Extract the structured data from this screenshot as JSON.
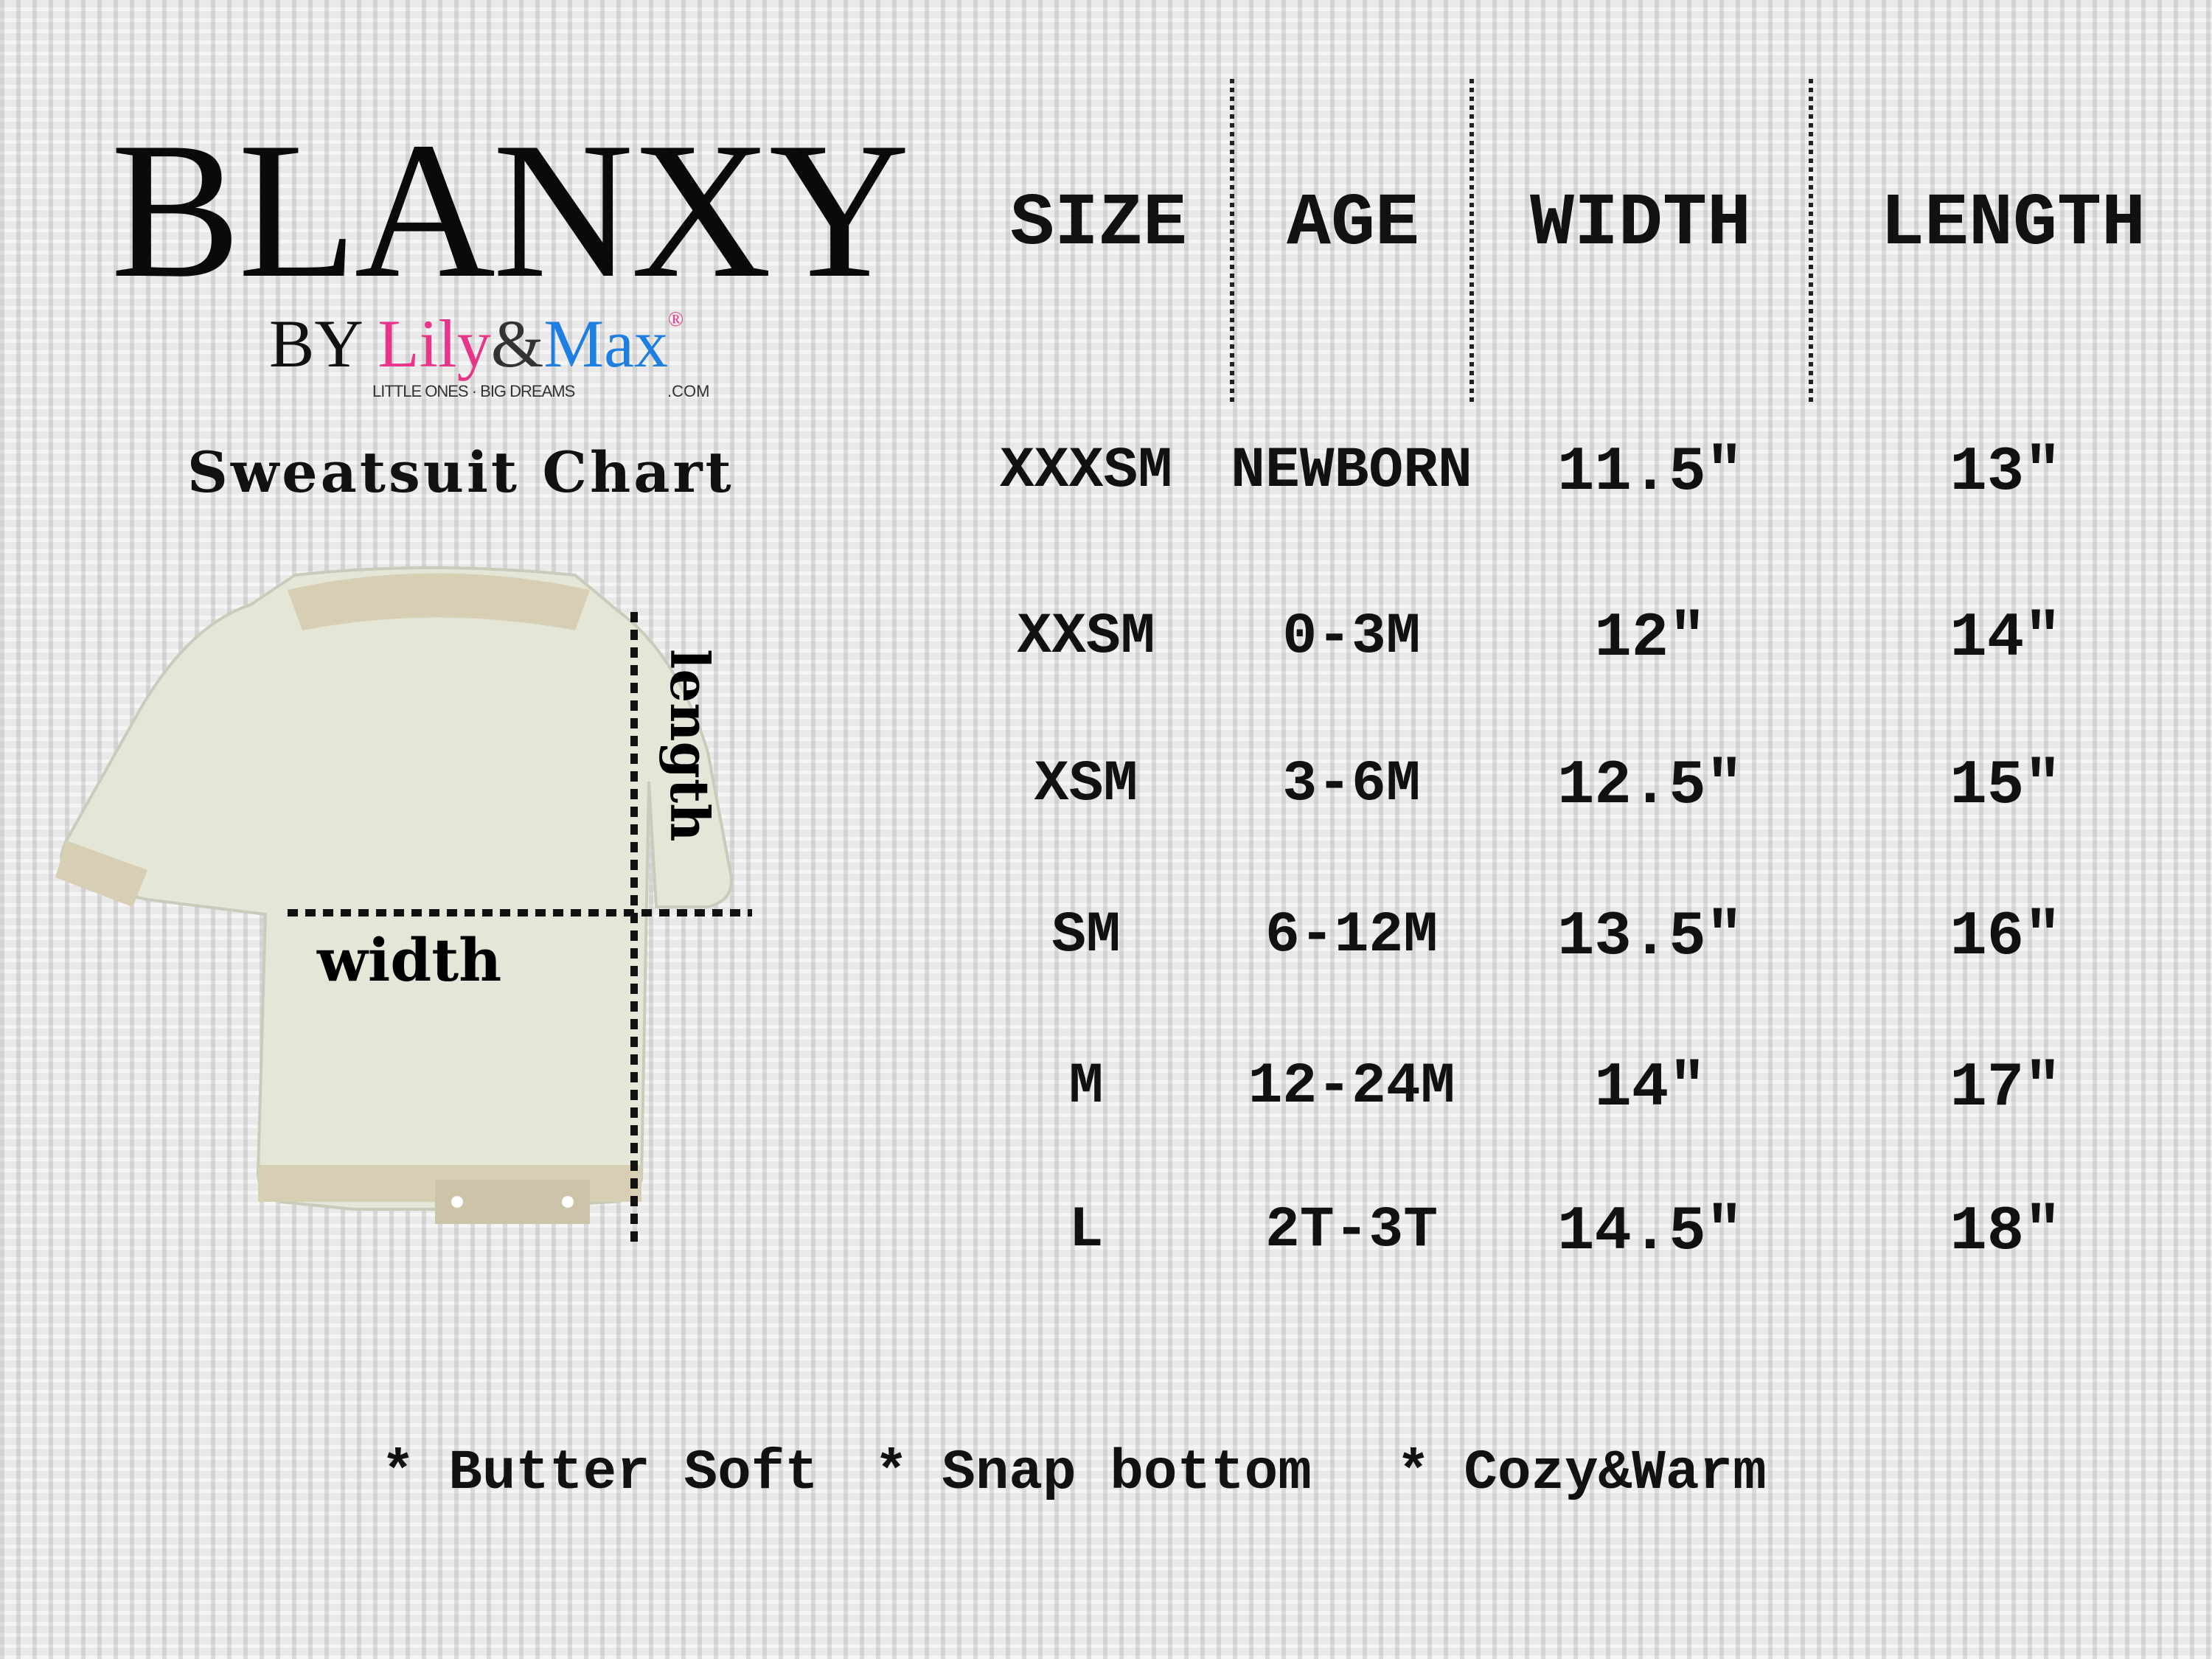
{
  "brand": {
    "name": "BLANXY",
    "by": "BY",
    "lily": "Lily",
    "amp": "&",
    "max": "Max",
    "registered": "®",
    "tagline": "LITTLE ONES · BIG DREAMS",
    "dotcom": ".COM"
  },
  "chart_title": "Sweatsuit Chart",
  "headers": [
    "SIZE",
    "AGE",
    "WIDTH",
    "LENGTH"
  ],
  "rows": [
    {
      "size": "XXXSM",
      "age": "NEWBORN",
      "width": "11.5\"",
      "length": "13\""
    },
    {
      "size": "XXSM",
      "age": "0-3M",
      "width": "12\"",
      "length": "14\""
    },
    {
      "size": "XSM",
      "age": "3-6M",
      "width": "12.5\"",
      "length": "15\""
    },
    {
      "size": "SM",
      "age": "6-12M",
      "width": "13.5\"",
      "length": "16\""
    },
    {
      "size": "M",
      "age": "12-24M",
      "width": "14\"",
      "length": "17\""
    },
    {
      "size": "L",
      "age": "2T-3T",
      "width": "14.5\"",
      "length": "18\""
    }
  ],
  "garment": {
    "width_label": "width",
    "length_label": "length"
  },
  "features": [
    "* Butter Soft",
    "* Snap bottom",
    "* Cozy&Warm"
  ],
  "colors": {
    "lily": "#e8358a",
    "max": "#1f7fe0",
    "garment": "#e4e6d8",
    "trim": "#d8ceb4"
  }
}
